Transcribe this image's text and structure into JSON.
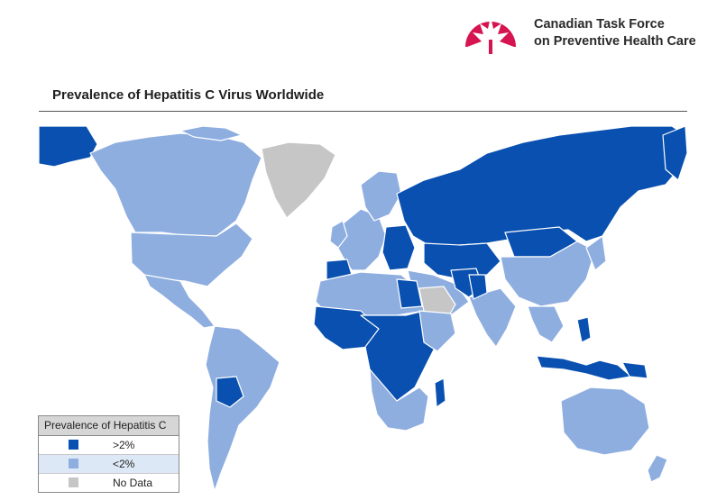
{
  "organization": {
    "line1": "Canadian Task Force",
    "line2": "on Preventive Health Care"
  },
  "map_title": "Prevalence of Hepatitis C Virus Worldwide",
  "legend": {
    "title": "Prevalence of Hepatitis C",
    "items": [
      {
        "label": ">2%",
        "color": "#0950b0"
      },
      {
        "label": "<2%",
        "color": "#8eaee0"
      },
      {
        "label": "No Data",
        "color": "#c6c6c6"
      }
    ]
  },
  "colors": {
    "high": "#0950b0",
    "low": "#8eaee0",
    "nodata": "#c6c6c6",
    "brand": "#d6144f"
  }
}
